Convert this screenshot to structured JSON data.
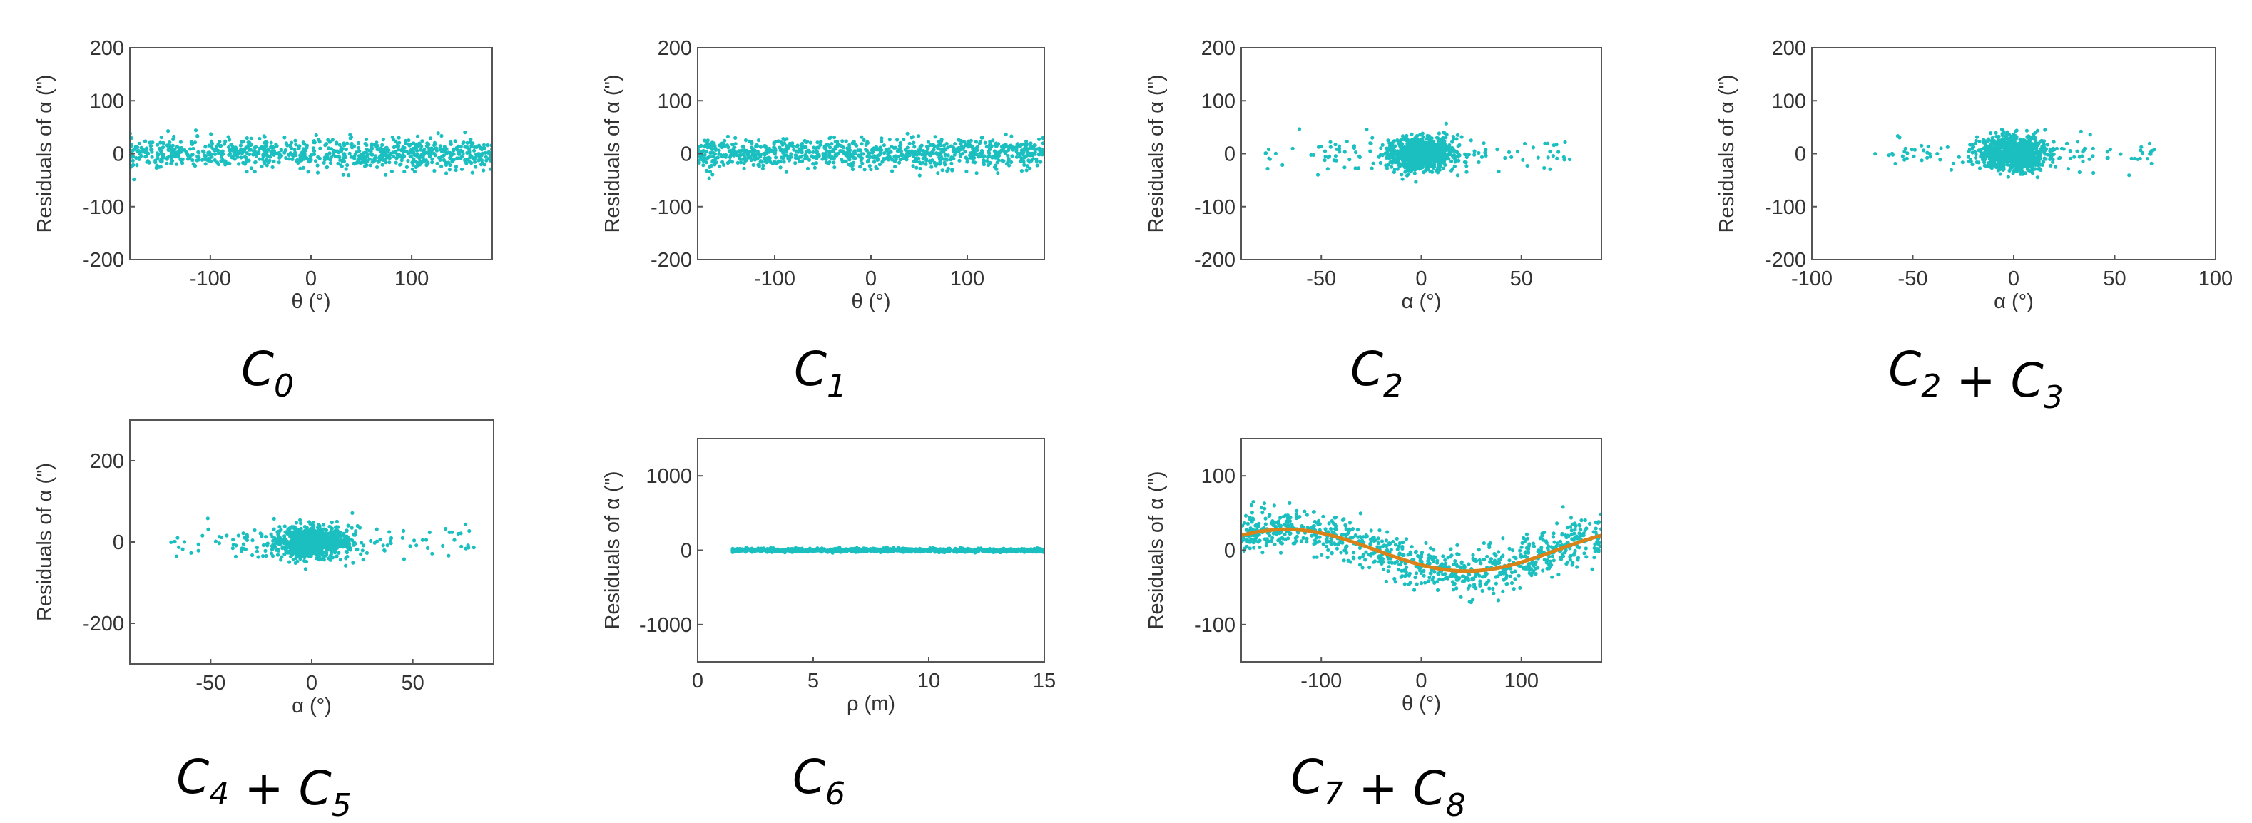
{
  "colors": {
    "points": "#1bbfbf",
    "fit_curve": "#d98218",
    "axes": "#555555",
    "text": "#333333"
  },
  "chart_data": [
    {
      "type": "scatter",
      "id": "c0",
      "caption": {
        "parts": [
          {
            "base": "C",
            "sub": "0"
          }
        ]
      },
      "xlabel": "θ (°)",
      "ylabel": "Residuals of α (\")",
      "xlim": [
        -180,
        180
      ],
      "ylim": [
        -200,
        200
      ],
      "xticks": [
        -100,
        0,
        100
      ],
      "yticks": [
        200,
        100,
        0,
        -100,
        -200
      ],
      "series": [
        {
          "name": "residuals",
          "n": 900,
          "x_dist": "uniform",
          "x_range": [
            -180,
            180
          ],
          "y_sd": 14,
          "y_clip": 62,
          "trend": "none"
        }
      ]
    },
    {
      "type": "scatter",
      "id": "c1",
      "caption": {
        "parts": [
          {
            "base": "C",
            "sub": "1"
          }
        ]
      },
      "xlabel": "θ (°)",
      "ylabel": "Residuals of α (\")",
      "xlim": [
        -180,
        180
      ],
      "ylim": [
        -200,
        200
      ],
      "xticks": [
        -100,
        0,
        100
      ],
      "yticks": [
        200,
        100,
        0,
        -100,
        -200
      ],
      "series": [
        {
          "name": "residuals",
          "n": 900,
          "x_dist": "uniform",
          "x_range": [
            -180,
            180
          ],
          "y_sd": 14,
          "y_clip": 62,
          "trend": "none"
        }
      ]
    },
    {
      "type": "scatter",
      "id": "c2",
      "caption": {
        "parts": [
          {
            "base": "C",
            "sub": "2"
          }
        ]
      },
      "xlabel": "α (°)",
      "ylabel": "Residuals of α (\")",
      "xlim": [
        -90,
        90
      ],
      "ylim": [
        -200,
        200
      ],
      "xticks": [
        -50,
        0,
        50
      ],
      "yticks": [
        200,
        100,
        0,
        -100,
        -200
      ],
      "series": [
        {
          "name": "residuals",
          "n": 1000,
          "x_dist": "cluster",
          "x_sd": 8,
          "x_range": [
            -80,
            76
          ],
          "y_sd": 16,
          "y_clip": 65,
          "trend": "none"
        }
      ]
    },
    {
      "type": "scatter",
      "id": "c23",
      "caption": {
        "parts": [
          {
            "base": "C",
            "sub": "2"
          },
          {
            "text": " + "
          },
          {
            "base": "C",
            "sub": "3"
          }
        ]
      },
      "xlabel": "α (°)",
      "ylabel": "Residuals of α (\")",
      "xlim": [
        -100,
        100
      ],
      "ylim": [
        -200,
        200
      ],
      "xticks": [
        -100,
        -50,
        0,
        50,
        100
      ],
      "yticks": [
        200,
        100,
        0,
        -100,
        -200
      ],
      "series": [
        {
          "name": "residuals",
          "n": 1000,
          "x_dist": "cluster",
          "x_sd": 8,
          "x_range": [
            -72,
            72
          ],
          "y_sd": 16,
          "y_clip": 70,
          "trend": "none"
        }
      ]
    },
    {
      "type": "scatter",
      "id": "c45",
      "caption": {
        "parts": [
          {
            "base": "C",
            "sub": "4"
          },
          {
            "text": " + "
          },
          {
            "base": "C",
            "sub": "5"
          }
        ]
      },
      "xlabel": "α (°)",
      "ylabel": "Residuals of α (\")",
      "xlim": [
        -90,
        90
      ],
      "ylim": [
        -300,
        300
      ],
      "xticks": [
        -50,
        0,
        50
      ],
      "yticks": [
        200,
        0,
        -200
      ],
      "series": [
        {
          "name": "residuals",
          "n": 1000,
          "x_dist": "cluster",
          "x_sd": 9,
          "x_range": [
            -70,
            82
          ],
          "y_sd": 20,
          "y_clip": 90,
          "trend": "none"
        }
      ]
    },
    {
      "type": "scatter",
      "id": "c6",
      "caption": {
        "parts": [
          {
            "base": "C",
            "sub": "6"
          }
        ]
      },
      "xlabel": "ρ (m)",
      "ylabel": "Residuals of α (\")",
      "xlim": [
        0,
        15
      ],
      "ylim": [
        -1500,
        1500
      ],
      "xticks": [
        0,
        5,
        10,
        15
      ],
      "yticks": [
        1000,
        0,
        -1000
      ],
      "series": [
        {
          "name": "residuals",
          "n": 900,
          "x_dist": "uniform",
          "x_range": [
            1.5,
            15
          ],
          "y_sd": 12,
          "y_clip": 50,
          "trend": "none"
        }
      ]
    },
    {
      "type": "scatter",
      "id": "c78",
      "caption": {
        "parts": [
          {
            "base": "C",
            "sub": "7"
          },
          {
            "text": " + "
          },
          {
            "base": "C",
            "sub": "8"
          }
        ]
      },
      "xlabel": "θ (°)",
      "ylabel": "Residuals of α (\")",
      "xlim": [
        -180,
        180
      ],
      "ylim": [
        -150,
        150
      ],
      "xticks": [
        -100,
        0,
        100
      ],
      "yticks": [
        100,
        0,
        -100
      ],
      "series": [
        {
          "name": "residuals",
          "n": 900,
          "x_dist": "uniform",
          "x_range": [
            -180,
            180
          ],
          "y_sd": 15,
          "y_clip": 55,
          "trend": "sin"
        },
        {
          "name": "fit",
          "type": "line",
          "function": "28 * sin(θ - 135°)",
          "amplitude": 28,
          "phase_deg": 135
        }
      ]
    }
  ]
}
